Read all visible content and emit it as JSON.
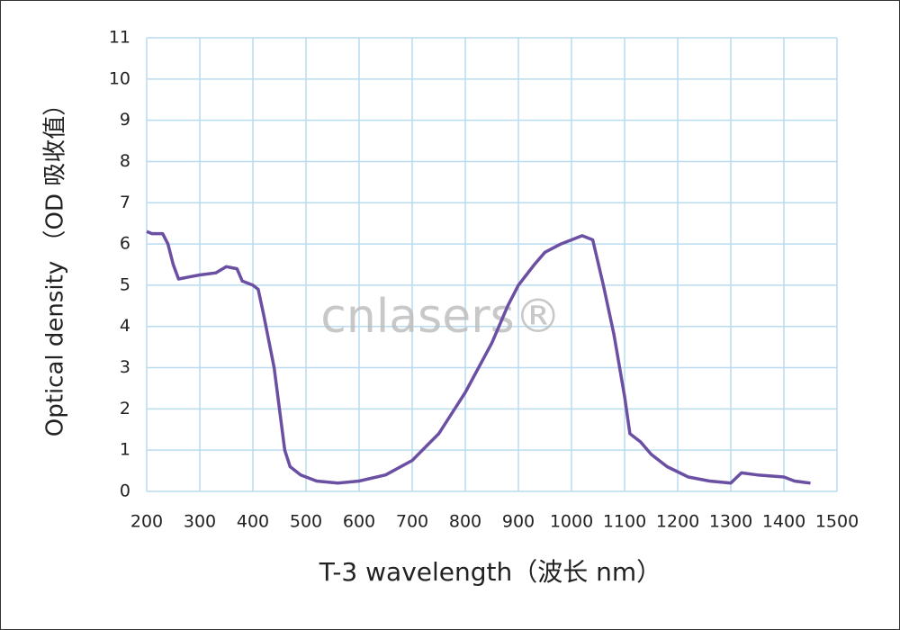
{
  "chart_data": {
    "type": "line",
    "x_label": "T-3 wavelength（波长 nm）",
    "y_label": "Optical density （OD 吸收值）",
    "watermark": "cnlasers®",
    "xlim": [
      200,
      1500
    ],
    "xticks": [
      200,
      300,
      400,
      500,
      600,
      700,
      800,
      900,
      1000,
      1100,
      1200,
      1300,
      1400,
      1500
    ],
    "ylim": [
      0,
      11
    ],
    "yticks": [
      0,
      1,
      2,
      3,
      4,
      5,
      6,
      7,
      8,
      9,
      10,
      11
    ],
    "grid": true,
    "series": [
      {
        "color": "#6a4fa3",
        "x": [
          200,
          210,
          230,
          240,
          250,
          260,
          280,
          300,
          330,
          350,
          370,
          380,
          400,
          410,
          420,
          440,
          450,
          460,
          470,
          490,
          520,
          560,
          600,
          650,
          700,
          750,
          800,
          850,
          880,
          900,
          930,
          950,
          980,
          1000,
          1020,
          1040,
          1060,
          1080,
          1100,
          1110,
          1130,
          1150,
          1180,
          1220,
          1260,
          1300,
          1320,
          1350,
          1400,
          1420,
          1450
        ],
        "values": [
          6.3,
          6.25,
          6.25,
          6.0,
          5.5,
          5.15,
          5.2,
          5.25,
          5.3,
          5.45,
          5.4,
          5.1,
          5.0,
          4.9,
          4.3,
          3.0,
          2.0,
          1.0,
          0.6,
          0.4,
          0.25,
          0.2,
          0.25,
          0.4,
          0.75,
          1.4,
          2.4,
          3.6,
          4.5,
          5.0,
          5.5,
          5.8,
          6.0,
          6.1,
          6.2,
          6.1,
          5.0,
          3.8,
          2.3,
          1.4,
          1.2,
          0.9,
          0.6,
          0.35,
          0.25,
          0.2,
          0.45,
          0.4,
          0.35,
          0.25,
          0.2
        ]
      }
    ]
  }
}
